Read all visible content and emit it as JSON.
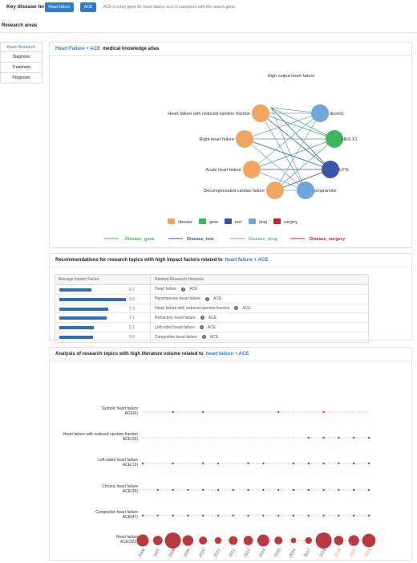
{
  "top": {
    "label": "Key disease term:",
    "pill_1": "Heart failure",
    "pill_2": "ACE",
    "note": ", ACE is a key gene for heart failure, so it is compared with the search gene."
  },
  "research_areas": "Research areas",
  "sidebar": [
    {
      "label": "Basic Research",
      "active": true
    },
    {
      "label": "Diagnosis",
      "active": false
    },
    {
      "label": "Treatment",
      "active": false
    },
    {
      "label": "Prognosis",
      "active": false
    }
  ],
  "panel1": {
    "title_hl": "Heart Failure + ACE",
    "title_rest": "medical knowledge atlas",
    "nodes": [
      {
        "label": "High output heart failure",
        "type": "disease"
      },
      {
        "label": "Heart failure with reduced ejection fraction",
        "type": "disease"
      },
      {
        "label": "Right heart failure",
        "type": "disease"
      },
      {
        "label": "Acute heart failure",
        "type": "disease"
      },
      {
        "label": "Decompensated cardiac failure",
        "type": "disease"
      },
      {
        "label": "diuretic",
        "type": "drug"
      },
      {
        "label": "HES X1",
        "type": "gene"
      },
      {
        "label": "LFTs",
        "type": "test"
      },
      {
        "label": "propranolol",
        "type": "drug"
      }
    ],
    "legend": [
      {
        "label": "disease",
        "color": "#f0a560"
      },
      {
        "label": "gene",
        "color": "#3fb55f"
      },
      {
        "label": "test",
        "color": "#3a56a8"
      },
      {
        "label": "drug",
        "color": "#6fa6d8"
      },
      {
        "label": "surgery",
        "color": "#c0282d"
      }
    ],
    "links": [
      {
        "label": "Disease_gene",
        "color": "#3fb55f"
      },
      {
        "label": "Disease_test",
        "color": "#3a56a8"
      },
      {
        "label": "Disease_drug",
        "color": "#6fa6d8"
      },
      {
        "label": "Disease_surgery",
        "color": "#c0282d"
      }
    ]
  },
  "panel2": {
    "title_pre": "Recommendations for research topics with high impact factors related to",
    "title_hl": "heart failure + ACE",
    "col1": "Average Impact Factor",
    "col2": "Related Research Hotspots",
    "rows": [
      {
        "value": "4.7",
        "topic": "Heart failure",
        "gene": "ACE",
        "frac": 0.46
      },
      {
        "value": "9.9",
        "topic": "Hypertensive heart failure",
        "gene": "ACE",
        "frac": 0.96
      },
      {
        "value": "7.3",
        "topic": "Heart failure with reduced ejection fraction",
        "gene": "ACE",
        "frac": 0.71
      },
      {
        "value": "7.1",
        "topic": "Refractory heart failure",
        "gene": "ACE",
        "frac": 0.69
      },
      {
        "value": "5.1",
        "topic": "Left-sided heart failure",
        "gene": "ACE",
        "frac": 0.5
      },
      {
        "value": "5.0",
        "topic": "Congestive heart failure",
        "gene": "ACE",
        "frac": 0.49
      }
    ]
  },
  "panel3": {
    "title_pre": "Analysis of research topics with high literature volume related to",
    "title_hl": "heart failure + ACE"
  },
  "chart_data": {
    "type": "scatter",
    "x": [
      "2006",
      "2007",
      "2008",
      "2009",
      "2010",
      "2011",
      "2012",
      "2013",
      "2014",
      "2015",
      "2016",
      "2017",
      "2018",
      "2019",
      "2020",
      "2021"
    ],
    "highlight_years": [
      "2019",
      "2020",
      "2021"
    ],
    "series": [
      {
        "name": "Systolic heart failure",
        "label": "ACE(6)",
        "years": [
          "2008",
          "2010",
          "2015",
          "2018"
        ],
        "sizes": [
          1,
          1,
          1,
          1
        ]
      },
      {
        "name": "Heart failure with reduced ejection fraction",
        "label": "ACE(26)",
        "years": [
          "2017",
          "2018",
          "2019",
          "2020",
          "2021"
        ],
        "sizes": [
          1,
          1,
          1,
          1,
          1
        ]
      },
      {
        "name": "Left-sided heart failure",
        "label": "ACE(13)",
        "years": [
          "2006",
          "2008",
          "2010",
          "2011",
          "2013",
          "2014",
          "2016",
          "2017",
          "2018",
          "2019",
          "2020",
          "2021"
        ],
        "sizes": [
          1,
          1,
          1,
          1,
          1,
          1,
          1,
          1,
          1,
          1,
          1,
          1
        ]
      },
      {
        "name": "Chronic heart failure",
        "label": "ACE(39)",
        "years": [
          "2007",
          "2008",
          "2009",
          "2010",
          "2011",
          "2012",
          "2013",
          "2014",
          "2015",
          "2016",
          "2017",
          "2018",
          "2019",
          "2020",
          "2021"
        ],
        "sizes": [
          1,
          1,
          1,
          1,
          1,
          1,
          1,
          1,
          1,
          1,
          1,
          1,
          1,
          1,
          1
        ]
      },
      {
        "name": "Congestive heart failure",
        "label": "ACE(47)",
        "years": [
          "2006",
          "2007",
          "2008",
          "2009",
          "2010",
          "2011",
          "2012",
          "2013",
          "2014",
          "2015",
          "2016",
          "2017",
          "2018",
          "2019",
          "2020",
          "2021"
        ],
        "sizes": [
          1,
          1,
          1,
          1,
          1,
          1,
          1,
          1,
          1,
          1,
          1,
          1,
          1,
          1,
          1,
          1
        ]
      },
      {
        "name": "Heart failure",
        "label": "ACE(322)",
        "years": [
          "2006",
          "2007",
          "2008",
          "2009",
          "2010",
          "2011",
          "2012",
          "2013",
          "2014",
          "2015",
          "2016",
          "2017",
          "2018",
          "2019",
          "2020",
          "2021"
        ],
        "sizes": [
          18,
          14,
          24,
          16,
          12,
          10,
          13,
          14,
          18,
          12,
          8,
          10,
          24,
          14,
          16,
          20
        ]
      }
    ],
    "colors": {
      "dot": "#b83a3e",
      "line": "#d86a6a",
      "year": "#555555",
      "year_highlight": "#e08a2a"
    }
  }
}
